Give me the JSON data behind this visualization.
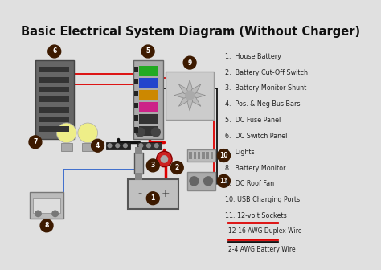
{
  "title": "Basic Electrical System Diagram (Without Charger)",
  "title_fontsize": 10.5,
  "bg_color": "#e0e0e0",
  "legend_items": [
    {
      "label": "1.  House Battery"
    },
    {
      "label": "2.  Battery Cut-Off Switch"
    },
    {
      "label": "3.  Battery Monitor Shunt"
    },
    {
      "label": "4.  Pos. & Neg Bus Bars"
    },
    {
      "label": "5.  DC Fuse Panel"
    },
    {
      "label": "6.  DC Switch Panel"
    },
    {
      "label": "7.  Lights"
    },
    {
      "label": "8.  Battery Monitor"
    },
    {
      "label": "9.  DC Roof Fan"
    },
    {
      "label": "10. USB Charging Ports"
    },
    {
      "label": "11. 12-volt Sockets"
    }
  ],
  "wire_legend_duplex_label": "12-16 AWG Duplex Wire",
  "wire_legend_battery_label": "2-4 AWG Battery Wire",
  "circle_color": "#3d1a00",
  "circle_text_color": "#ffffff",
  "red": "#dd0000",
  "black": "#111111",
  "blue": "#3366cc",
  "fuse_colors": [
    "#22aa22",
    "#2244cc",
    "#cc8800",
    "#cc2288",
    "#333333",
    "#333333"
  ]
}
